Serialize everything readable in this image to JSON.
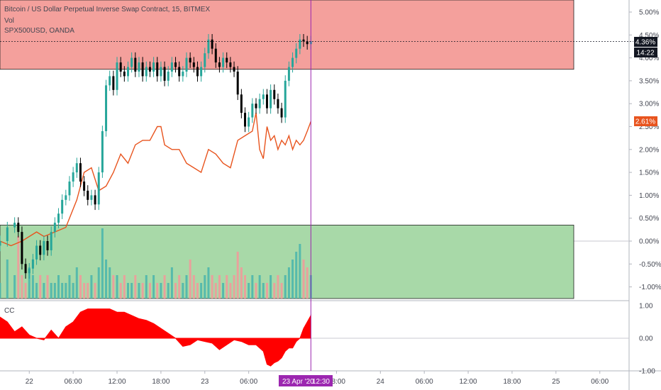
{
  "legend": {
    "title": "Bitcoin / US Dollar Perpetual Inverse Swap Contract, 15, BITMEX",
    "vol": "Vol",
    "spx": "SPX500USD, OANDA",
    "cc": "CC"
  },
  "badges": {
    "btc_value": "4.36%",
    "countdown": "14:22",
    "spx_value": "2.61%",
    "crosshair_date": "23 Apr '20",
    "crosshair_time": "12:30"
  },
  "colors": {
    "up": "#26a69a",
    "down": "#000000",
    "upper_zone": "#f4a09c",
    "lower_zone": "#a8d9a8",
    "spx_line": "#e8541e",
    "cc_fill": "#ff0000",
    "crosshair": "#9c27b0"
  },
  "chart_data": [
    {
      "type": "candlestick",
      "title": "Bitcoin / US Dollar Perpetual Inverse Swap Contract, 15, BITMEX",
      "ylabel": "percent change",
      "y_ticks": [
        "5.00%",
        "4.50%",
        "4.00%",
        "3.50%",
        "3.00%",
        "2.50%",
        "2.00%",
        "1.50%",
        "1.00%",
        "0.50%",
        "0.00%",
        "-0.50%",
        "-1.00%"
      ],
      "y_tick_values": [
        5.0,
        4.5,
        4.0,
        3.5,
        3.0,
        2.5,
        2.0,
        1.5,
        1.0,
        0.5,
        0.0,
        -0.5,
        -1.0
      ],
      "x_ticks": [
        "22",
        "06:00",
        "12:00",
        "18:00",
        "23",
        "06:00",
        "18:00",
        "24",
        "06:00",
        "12:00",
        "18:00",
        "25",
        "06:00"
      ],
      "x_tick_hours": [
        24,
        30,
        36,
        42,
        48,
        54,
        66,
        72,
        78,
        84,
        90,
        96,
        102
      ],
      "hour_range": [
        20.0,
        106.0
      ],
      "close_hours": [
        20.0,
        21.0,
        22.0,
        22.5,
        23.0,
        23.5,
        24.0,
        24.5,
        25.0,
        25.5,
        26.0,
        26.5,
        27.0,
        27.5,
        28.0,
        28.5,
        29.0,
        29.5,
        30.0,
        30.5,
        31.0,
        31.5,
        32.0,
        32.5,
        33.0,
        33.5,
        34.0,
        34.5,
        35.0,
        35.5,
        36.0,
        36.5,
        37.0,
        37.5,
        38.0,
        38.5,
        39.0,
        39.5,
        40.0,
        40.5,
        41.0,
        41.5,
        42.0,
        42.5,
        43.0,
        43.5,
        44.0,
        44.5,
        45.0,
        45.5,
        46.0,
        46.5,
        47.0,
        47.5,
        48.0,
        48.5,
        49.0,
        49.5,
        50.0,
        50.5,
        51.0,
        51.5,
        52.0,
        52.5,
        53.0,
        53.5,
        54.0,
        54.5,
        55.0,
        55.5,
        56.0,
        56.5,
        57.0,
        57.5,
        58.0,
        58.5,
        59.0,
        59.5,
        60.0,
        60.5,
        61.0,
        61.5,
        62.0,
        62.5
      ],
      "close_pct": [
        0.0,
        0.3,
        0.4,
        0.2,
        -0.5,
        -0.7,
        -0.6,
        -0.4,
        -0.1,
        -0.3,
        0.0,
        -0.2,
        0.2,
        0.4,
        0.6,
        0.9,
        1.0,
        1.3,
        1.5,
        1.7,
        1.3,
        1.1,
        0.9,
        1.0,
        0.8,
        1.5,
        2.4,
        3.4,
        3.6,
        3.3,
        3.9,
        3.7,
        3.6,
        3.8,
        4.0,
        3.7,
        3.9,
        3.6,
        3.8,
        3.7,
        3.9,
        3.6,
        3.8,
        3.5,
        3.7,
        3.9,
        3.8,
        3.6,
        3.7,
        4.0,
        3.9,
        3.8,
        3.6,
        3.8,
        4.1,
        4.4,
        4.2,
        3.9,
        3.8,
        4.0,
        3.9,
        3.8,
        3.7,
        3.2,
        2.8,
        2.5,
        2.7,
        3.0,
        2.9,
        3.1,
        3.2,
        2.9,
        3.3,
        3.1,
        2.9,
        2.7,
        3.5,
        3.8,
        4.0,
        4.2,
        4.4,
        4.36,
        4.3,
        4.36
      ],
      "upper_zone_pct": [
        3.75,
        6.0
      ],
      "lower_zone_pct": [
        -1.3,
        0.35
      ],
      "volume_relative": [
        0.2,
        0.5,
        0.3,
        0.8,
        0.3,
        0.2,
        0.4,
        0.3,
        0.2,
        0.3,
        0.2,
        0.3,
        0.2,
        0.2,
        0.3,
        0.2,
        0.2,
        0.3,
        0.2,
        0.4,
        0.3,
        0.2,
        0.2,
        0.3,
        0.2,
        0.4,
        0.9,
        0.5,
        0.4,
        0.3,
        0.3,
        0.2,
        0.3,
        0.2,
        0.2,
        0.3,
        0.2,
        0.2,
        0.3,
        0.2,
        0.3,
        0.2,
        0.2,
        0.3,
        0.2,
        0.4,
        0.2,
        0.3,
        0.2,
        0.3,
        0.5,
        0.3,
        0.2,
        0.2,
        0.3,
        0.4,
        0.3,
        0.2,
        0.3,
        0.2,
        0.3,
        0.2,
        0.3,
        0.6,
        0.4,
        0.3,
        0.2,
        0.3,
        0.2,
        0.3,
        0.2,
        0.2,
        0.3,
        0.2,
        0.3,
        0.2,
        0.3,
        0.4,
        0.5,
        0.6,
        0.7,
        0.5,
        0.4,
        0.3
      ]
    },
    {
      "type": "line",
      "name": "SPX500USD, OANDA",
      "x_hours": [
        20.0,
        21.5,
        23.0,
        24.0,
        25.0,
        26.0,
        27.5,
        29.0,
        30.5,
        31.5,
        32.5,
        33.5,
        34.5,
        35.5,
        36.5,
        37.5,
        38.5,
        39.5,
        40.5,
        41.5,
        42.0,
        42.5,
        43.5,
        44.5,
        45.5,
        46.5,
        47.5,
        48.5,
        49.5,
        50.5,
        51.5,
        52.5,
        53.5,
        54.5,
        55.0,
        55.5,
        56.0,
        56.5,
        57.0,
        57.5,
        58.0,
        58.5,
        59.0,
        59.5,
        60.0,
        60.5,
        61.0,
        61.5,
        62.0,
        62.5
      ],
      "y_pct": [
        0.0,
        -0.1,
        0.0,
        0.1,
        0.2,
        0.1,
        0.2,
        0.3,
        0.9,
        1.5,
        1.6,
        1.1,
        1.2,
        1.5,
        1.9,
        1.7,
        2.1,
        2.2,
        2.2,
        2.5,
        2.5,
        2.1,
        2.0,
        2.0,
        1.7,
        1.6,
        1.5,
        2.0,
        1.9,
        1.7,
        1.6,
        2.2,
        2.3,
        2.4,
        2.8,
        2.0,
        1.8,
        2.5,
        2.2,
        2.3,
        2.0,
        2.2,
        2.1,
        2.3,
        2.0,
        2.2,
        2.1,
        2.2,
        2.4,
        2.61
      ]
    },
    {
      "type": "area",
      "name": "CC",
      "y_ticks": [
        "1.00",
        "0.00",
        "-1.00"
      ],
      "y_tick_values": [
        1.0,
        0.0,
        -1.0
      ],
      "ylim": [
        -1.0,
        1.0
      ],
      "x_hours": [
        20.0,
        21.0,
        22.0,
        23.0,
        24.0,
        25.0,
        26.0,
        27.0,
        28.0,
        29.0,
        30.0,
        31.0,
        32.0,
        33.0,
        34.0,
        35.0,
        36.0,
        37.0,
        38.0,
        39.0,
        40.0,
        41.0,
        42.0,
        43.0,
        44.0,
        45.0,
        46.0,
        47.0,
        48.0,
        49.0,
        50.0,
        51.0,
        52.0,
        53.0,
        54.0,
        55.0,
        56.0,
        56.5,
        57.0,
        57.5,
        58.0,
        58.5,
        59.0,
        59.5,
        60.0,
        60.5,
        61.0,
        61.5,
        62.0,
        62.5
      ],
      "values": [
        0.65,
        0.5,
        0.2,
        0.35,
        0.1,
        0.0,
        -0.05,
        0.25,
        0.0,
        0.35,
        0.5,
        0.8,
        0.9,
        0.9,
        0.9,
        0.9,
        0.8,
        0.8,
        0.7,
        0.6,
        0.55,
        0.45,
        0.3,
        0.15,
        0.0,
        -0.25,
        -0.2,
        -0.05,
        -0.1,
        -0.15,
        -0.35,
        -0.2,
        -0.05,
        -0.1,
        -0.2,
        -0.2,
        -0.4,
        -0.8,
        -0.85,
        -0.75,
        -0.7,
        -0.6,
        -0.4,
        -0.3,
        -0.3,
        -0.1,
        0.0,
        0.3,
        0.5,
        0.7
      ]
    }
  ]
}
